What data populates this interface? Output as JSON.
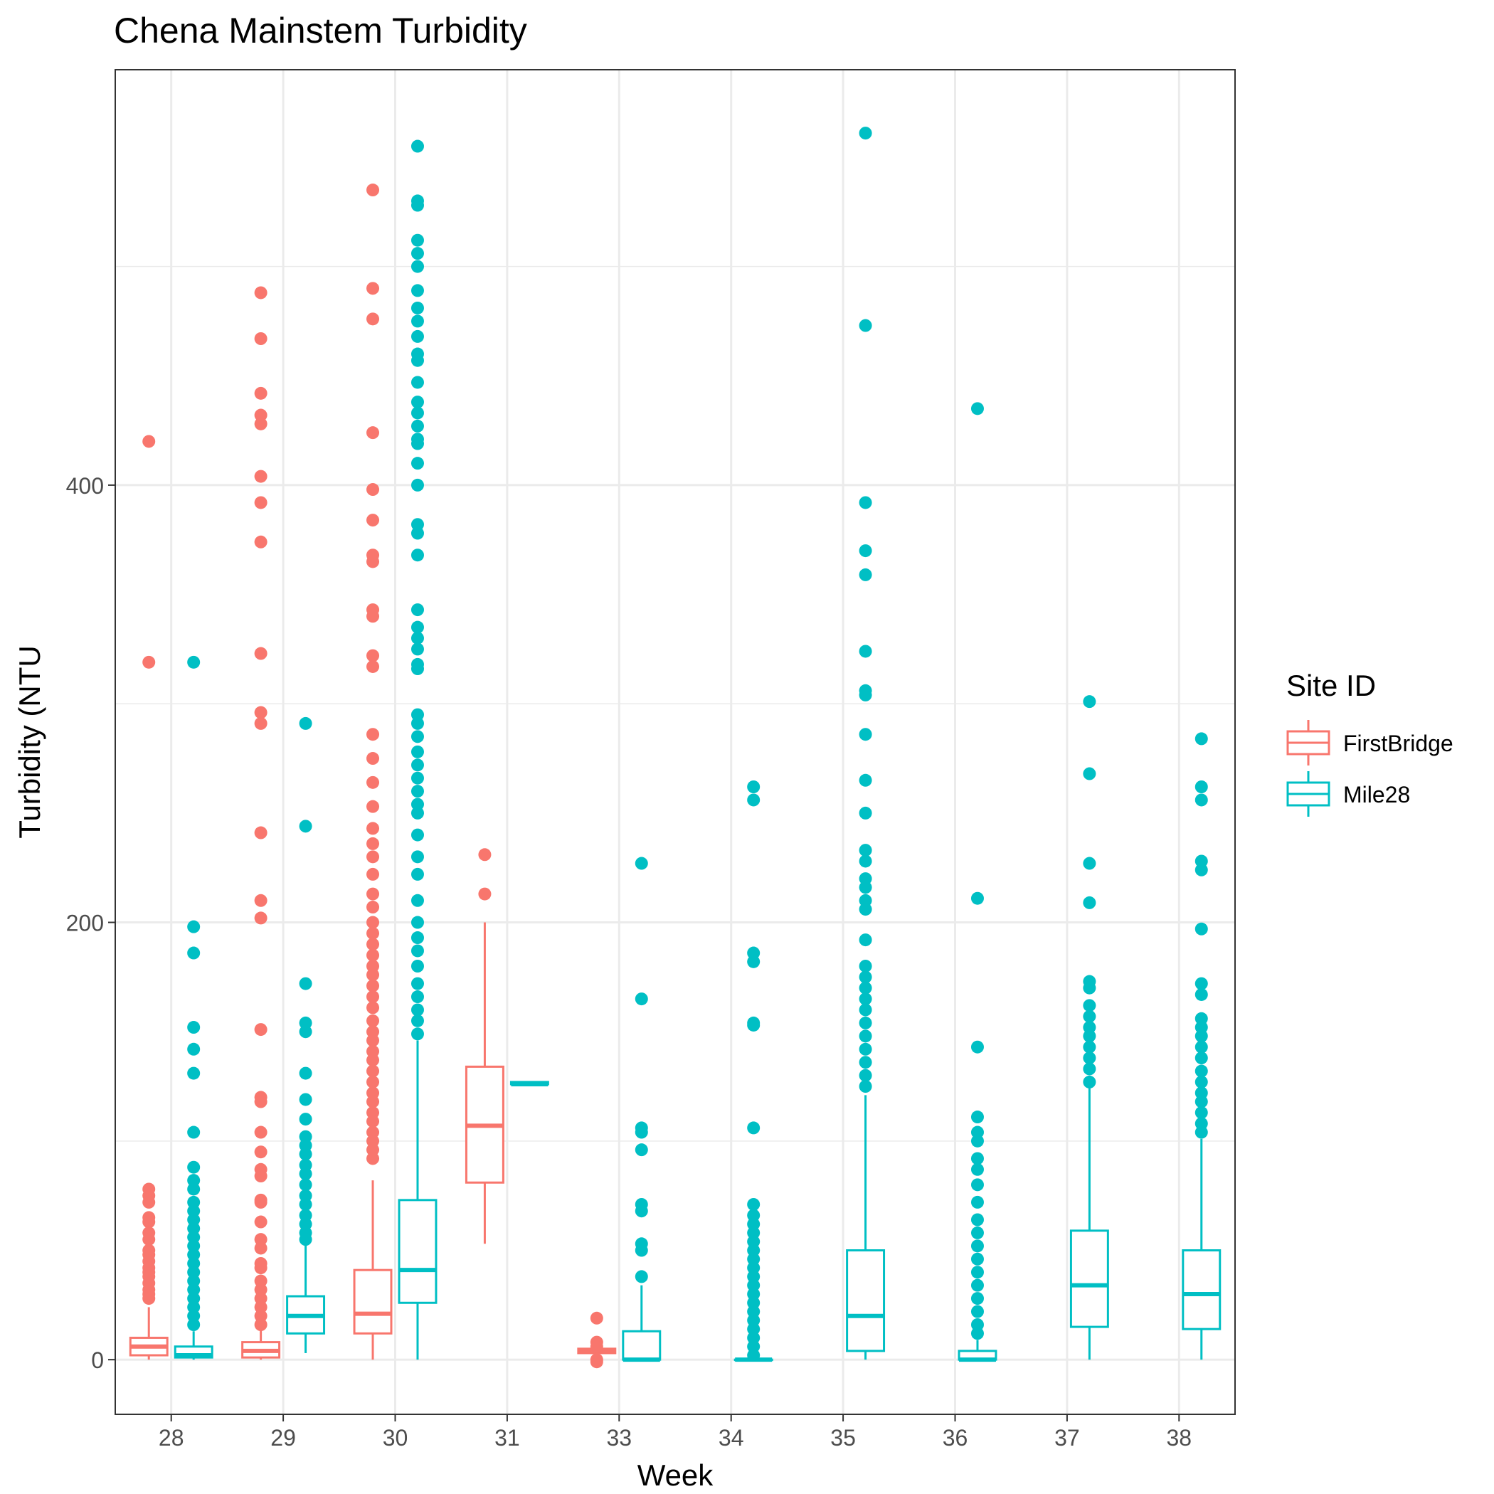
{
  "chart_data": {
    "type": "boxplot",
    "title": "Chena Mainstem Turbidity",
    "xlabel": "Week",
    "ylabel": "Turbidity (NTU",
    "categories": [
      "28",
      "29",
      "30",
      "31",
      "33",
      "34",
      "35",
      "36",
      "37",
      "38"
    ],
    "ylim": [
      -25,
      590
    ],
    "yticks": [
      0,
      200,
      400
    ],
    "grid": true,
    "legend": {
      "title": "Site ID",
      "position": "right",
      "entries": [
        {
          "name": "FirstBridge",
          "color": "#F8766D"
        },
        {
          "name": "Mile28",
          "color": "#00BFC4"
        }
      ]
    },
    "series": [
      {
        "name": "FirstBridge",
        "color": "#F8766D",
        "boxes": [
          {
            "week": "28",
            "min": 0,
            "q1": 2,
            "median": 6,
            "q3": 10,
            "max": 24,
            "outliers": [
              420,
              319,
              78,
              75,
              72,
              65,
              63,
              58,
              55,
              50,
              48,
              45,
              42,
              40,
              38,
              35,
              32,
              30,
              28
            ]
          },
          {
            "week": "29",
            "min": 0,
            "q1": 1,
            "median": 4,
            "q3": 8,
            "max": 16,
            "outliers": [
              488,
              467,
              442,
              432,
              428,
              404,
              392,
              374,
              323,
              296,
              291,
              241,
              210,
              202,
              151,
              120,
              118,
              104,
              95,
              87,
              84,
              73,
              72,
              63,
              55,
              51,
              44,
              42,
              36,
              32,
              28,
              24,
              20,
              16
            ]
          },
          {
            "week": "30",
            "min": 0,
            "q1": 12,
            "median": 21,
            "q3": 41,
            "max": 82,
            "outliers": [
              535,
              490,
              476,
              424,
              398,
              384,
              368,
              365,
              343,
              340,
              322,
              317,
              286,
              275,
              264,
              253,
              243,
              236,
              230,
              222,
              213,
              207,
              200,
              195,
              190,
              185,
              180,
              176,
              171,
              166,
              161,
              155,
              150,
              146,
              141,
              137,
              132,
              127,
              122,
              118,
              113,
              109,
              104,
              100,
              96,
              92
            ]
          },
          {
            "week": "31",
            "min": 53,
            "q1": 81,
            "median": 107,
            "q3": 134,
            "max": 200,
            "outliers": [
              231,
              213
            ]
          },
          {
            "week": "33",
            "min": 1,
            "q1": 3,
            "median": 4,
            "q3": 5,
            "max": 7,
            "outliers": [
              19,
              8,
              6,
              0,
              -1
            ]
          }
        ]
      },
      {
        "name": "Mile28",
        "color": "#00BFC4",
        "boxes": [
          {
            "week": "28",
            "min": 0,
            "q1": 1,
            "median": 2,
            "q3": 6,
            "max": 13,
            "outliers": [
              319,
              198,
              186,
              152,
              142,
              131,
              104,
              88,
              82,
              78,
              72,
              68,
              64,
              60,
              56,
              52,
              48,
              44,
              40,
              36,
              32,
              28,
              24,
              20,
              16
            ]
          },
          {
            "week": "29",
            "min": 3,
            "q1": 12,
            "median": 20,
            "q3": 29,
            "max": 53,
            "outliers": [
              291,
              244,
              172,
              154,
              150,
              131,
              119,
              110,
              102,
              98,
              94,
              89,
              85,
              80,
              75,
              71,
              66,
              62,
              58,
              55
            ]
          },
          {
            "week": "30",
            "min": 0,
            "q1": 26,
            "median": 41,
            "q3": 73,
            "max": 146,
            "outliers": [
              555,
              530,
              528,
              512,
              506,
              500,
              489,
              481,
              475,
              468,
              460,
              457,
              447,
              438,
              433,
              427,
              421,
              419,
              410,
              400,
              382,
              378,
              368,
              343,
              335,
              330,
              325,
              318,
              316,
              295,
              291,
              285,
              278,
              272,
              266,
              260,
              254,
              250,
              240,
              230,
              222,
              210,
              200,
              193,
              187,
              180,
              172,
              166,
              160,
              155,
              149
            ]
          },
          {
            "week": "31",
            "min": 126,
            "q1": 126,
            "median": 126,
            "q3": 127,
            "max": 127,
            "outliers": []
          },
          {
            "week": "33",
            "min": 0,
            "q1": 0,
            "median": 0,
            "q3": 13,
            "max": 34,
            "outliers": [
              227,
              165,
              106,
              104,
              96,
              71,
              68,
              53,
              50,
              38
            ]
          },
          {
            "week": "34",
            "min": 0,
            "q1": 0,
            "median": 0,
            "q3": 0,
            "max": 0,
            "outliers": [
              262,
              256,
              186,
              182,
              154,
              153,
              106,
              71,
              66,
              62,
              58,
              54,
              50,
              46,
              42,
              38,
              34,
              30,
              26,
              22,
              18,
              14,
              10,
              6,
              2
            ]
          },
          {
            "week": "35",
            "min": 0,
            "q1": 4,
            "median": 20,
            "q3": 50,
            "max": 121,
            "outliers": [
              561,
              473,
              392,
              370,
              359,
              324,
              306,
              304,
              286,
              265,
              250,
              233,
              228,
              220,
              216,
              210,
              206,
              192,
              180,
              175,
              170,
              165,
              160,
              154,
              148,
              142,
              136,
              130,
              125
            ]
          },
          {
            "week": "36",
            "min": 0,
            "q1": 0,
            "median": 0,
            "q3": 4,
            "max": 9,
            "outliers": [
              435,
              211,
              143,
              111,
              104,
              100,
              92,
              87,
              80,
              72,
              64,
              58,
              52,
              46,
              40,
              34,
              28,
              22,
              16,
              12
            ]
          },
          {
            "week": "37",
            "min": 0,
            "q1": 15,
            "median": 34,
            "q3": 59,
            "max": 125,
            "outliers": [
              301,
              268,
              227,
              209,
              173,
              170,
              162,
              157,
              152,
              148,
              143,
              138,
              133,
              127
            ]
          },
          {
            "week": "38",
            "min": 0,
            "q1": 14,
            "median": 30,
            "q3": 50,
            "max": 101,
            "outliers": [
              284,
              262,
              256,
              228,
              224,
              197,
              172,
              167,
              156,
              152,
              148,
              143,
              138,
              132,
              127,
              122,
              118,
              113,
              108,
              104
            ]
          }
        ]
      }
    ]
  }
}
